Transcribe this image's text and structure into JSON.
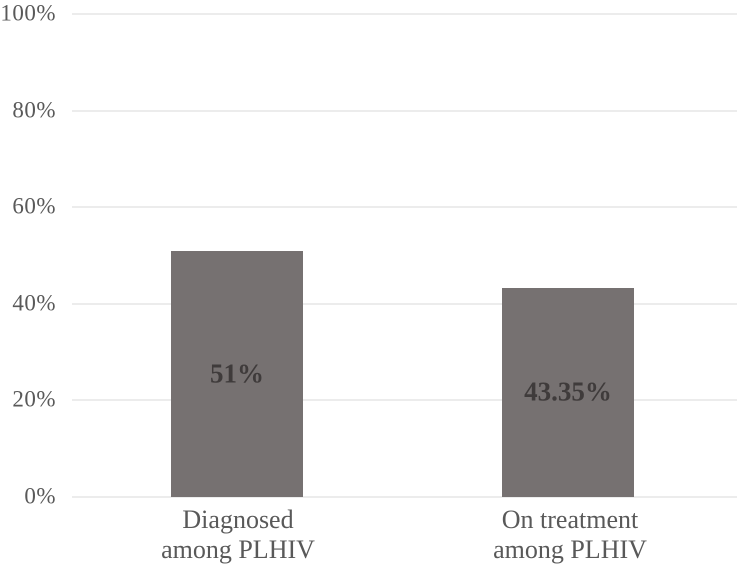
{
  "chart_data": {
    "type": "bar",
    "title": "",
    "xlabel": "",
    "ylabel": "",
    "categories": [
      "Diagnosed among PLHIV",
      "On treatment among PLHIV"
    ],
    "category_lines": [
      [
        "Diagnosed",
        "among PLHIV"
      ],
      [
        "On treatment",
        "among PLHIV"
      ]
    ],
    "values": [
      51,
      43.35
    ],
    "data_labels": [
      "51%",
      "43.35%"
    ],
    "data_label_position": "center",
    "yticks": [
      "0%",
      "20%",
      "40%",
      "60%",
      "80%",
      "100%"
    ],
    "ylim": [
      0,
      100
    ],
    "grid": true,
    "legend": "none",
    "bar_color": "#767171",
    "data_label_color": "#3f3b3b",
    "axis_text_color": "#595959",
    "gridline_color": "#d9d9d9",
    "background_color": "#ffffff"
  }
}
